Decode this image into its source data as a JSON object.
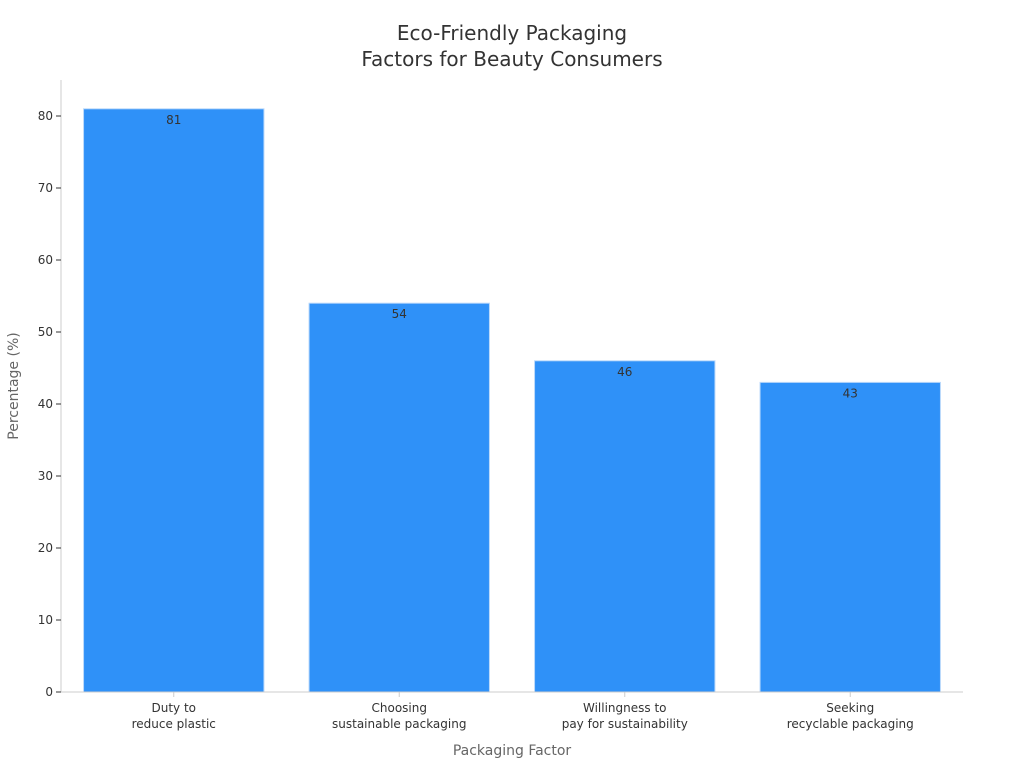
{
  "chart_data": {
    "type": "bar",
    "title_lines": [
      "Eco-Friendly Packaging",
      "Factors for Beauty Consumers"
    ],
    "xlabel": "Packaging Factor",
    "ylabel": "Percentage (%)",
    "categories": [
      [
        "Duty to",
        "reduce plastic"
      ],
      [
        "Choosing",
        "sustainable packaging"
      ],
      [
        "Willingness to",
        "pay for sustainability"
      ],
      [
        "Seeking",
        "recyclable packaging"
      ]
    ],
    "values": [
      81,
      54,
      46,
      43
    ],
    "ylim": [
      0,
      85
    ],
    "yticks": [
      0,
      10,
      20,
      30,
      40,
      50,
      60,
      70,
      80
    ],
    "grid": false,
    "bar_color": "#2F91F8",
    "axis_color": "#CCCCCC",
    "text_color": "#333333",
    "label_color": "#666666"
  }
}
